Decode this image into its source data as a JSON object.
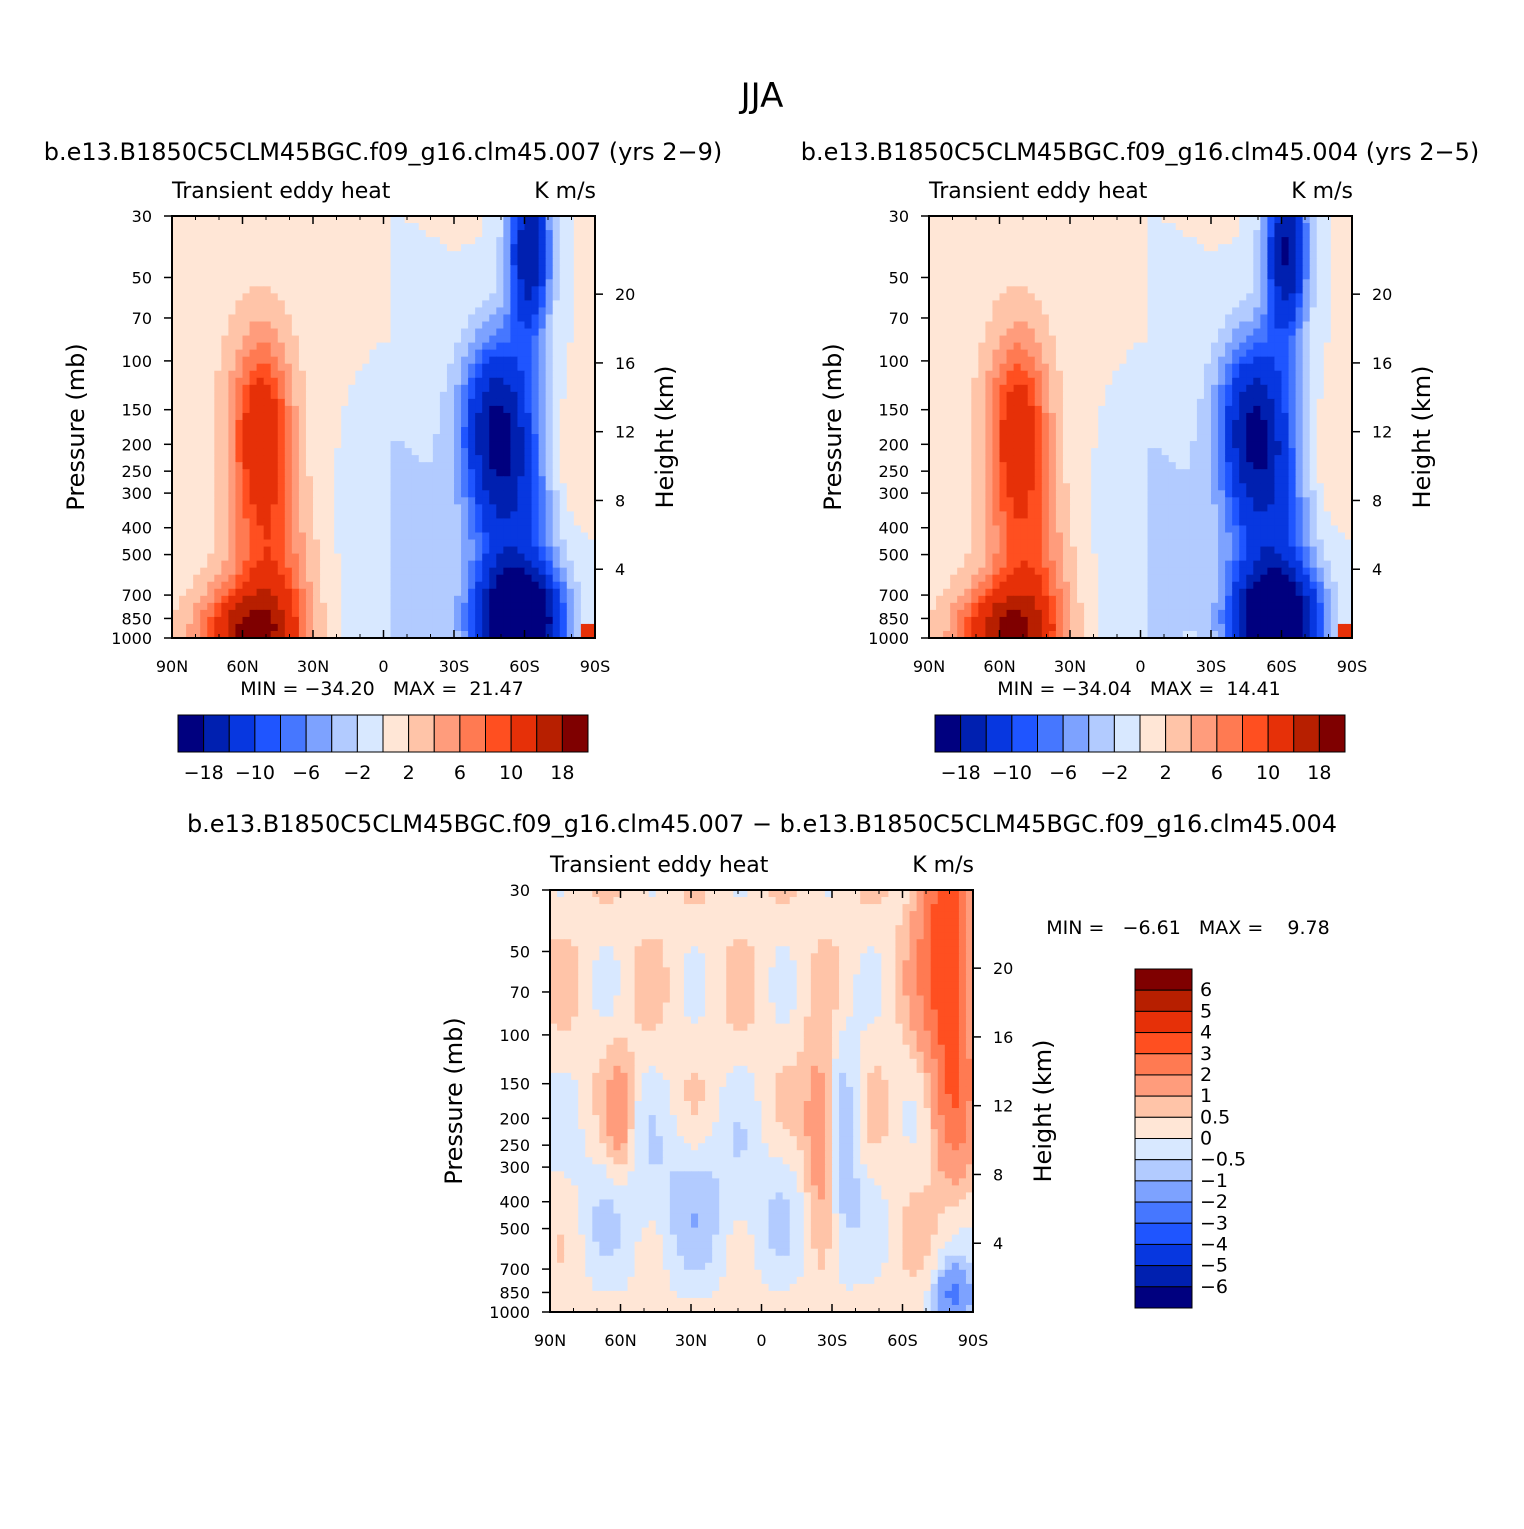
{
  "page_title": "JJA",
  "panels": [
    {
      "id": "p1",
      "case_title": "b.e13.B1850C5CLM45BGC.f09_g16.clm45.007 (yrs 2−9)",
      "left_label": "Transient eddy heat",
      "right_label": "K m/s",
      "stats": "MIN = −34.20   MAX =  21.47"
    },
    {
      "id": "p2",
      "case_title": "b.e13.B1850C5CLM45BGC.f09_g16.clm45.004 (yrs 2−5)",
      "left_label": "Transient eddy heat",
      "right_label": "K m/s",
      "stats": "MIN = −34.04   MAX =  14.41"
    },
    {
      "id": "p3",
      "case_title": "b.e13.B1850C5CLM45BGC.f09_g16.clm45.007 − b.e13.B1850C5CLM45BGC.f09_g16.clm45.004",
      "left_label": "Transient eddy heat",
      "right_label": "K m/s",
      "stats": "MIN =   −6.61   MAX =    9.78"
    }
  ],
  "chart_data": [
    {
      "type": "heatmap",
      "title": "b.e13.B1850C5CLM45BGC.f09_g16.clm45.007 (yrs 2−9)",
      "subtitle": "Transient eddy heat  K m/s",
      "xlabel": "",
      "ylabel": "Pressure (mb)",
      "ylabel_right": "Height (km)",
      "x_ticks": [
        "90N",
        "60N",
        "30N",
        "0",
        "30S",
        "60S",
        "90S"
      ],
      "y_ticks": [
        "30",
        "50",
        "70",
        "100",
        "150",
        "200",
        "250",
        "300",
        "400",
        "500",
        "700",
        "850",
        "1000"
      ],
      "y_right_ticks": [
        "20",
        "16",
        "12",
        "8",
        "4"
      ],
      "xlim": [
        90,
        -90
      ],
      "ylim": [
        1000,
        30
      ],
      "min": -34.2,
      "max": 21.47,
      "colorbar_labels": [
        "−18",
        "−10",
        "−6",
        "−2",
        "2",
        "6",
        "10",
        "18"
      ]
    },
    {
      "type": "heatmap",
      "title": "b.e13.B1850C5CLM45BGC.f09_g16.clm45.004 (yrs 2−5)",
      "subtitle": "Transient eddy heat  K m/s",
      "xlabel": "",
      "ylabel": "Pressure (mb)",
      "ylabel_right": "Height (km)",
      "x_ticks": [
        "90N",
        "60N",
        "30N",
        "0",
        "30S",
        "60S",
        "90S"
      ],
      "y_ticks": [
        "30",
        "50",
        "70",
        "100",
        "150",
        "200",
        "250",
        "300",
        "400",
        "500",
        "700",
        "850",
        "1000"
      ],
      "y_right_ticks": [
        "20",
        "16",
        "12",
        "8",
        "4"
      ],
      "xlim": [
        90,
        -90
      ],
      "ylim": [
        1000,
        30
      ],
      "min": -34.04,
      "max": 14.41,
      "colorbar_labels": [
        "−18",
        "−10",
        "−6",
        "−2",
        "2",
        "6",
        "10",
        "18"
      ]
    },
    {
      "type": "heatmap",
      "title": "b.e13.B1850C5CLM45BGC.f09_g16.clm45.007 − b.e13.B1850C5CLM45BGC.f09_g16.clm45.004",
      "subtitle": "Transient eddy heat  K m/s",
      "xlabel": "",
      "ylabel": "Pressure (mb)",
      "ylabel_right": "Height (km)",
      "x_ticks": [
        "90N",
        "60N",
        "30N",
        "0",
        "30S",
        "60S",
        "90S"
      ],
      "y_ticks": [
        "30",
        "50",
        "70",
        "100",
        "150",
        "200",
        "250",
        "300",
        "400",
        "500",
        "700",
        "850",
        "1000"
      ],
      "y_right_ticks": [
        "20",
        "16",
        "12",
        "8",
        "4"
      ],
      "xlim": [
        90,
        -90
      ],
      "ylim": [
        1000,
        30
      ],
      "min": -6.61,
      "max": 9.78,
      "colorbar_labels": [
        "6",
        "5",
        "4",
        "3",
        "2",
        "1",
        "0.5",
        "0",
        "−0.5",
        "−1",
        "−2",
        "−3",
        "−4",
        "−5",
        "−6"
      ]
    }
  ],
  "colormap": [
    "#00007f",
    "#0020b0",
    "#0737e0",
    "#1f55ff",
    "#4677ff",
    "#7da2ff",
    "#b2cbff",
    "#d8e8ff",
    "#ffe6d6",
    "#ffc4a8",
    "#ff9c7c",
    "#ff7a52",
    "#ff4f20",
    "#e63008",
    "#b71f00",
    "#7f0000"
  ]
}
